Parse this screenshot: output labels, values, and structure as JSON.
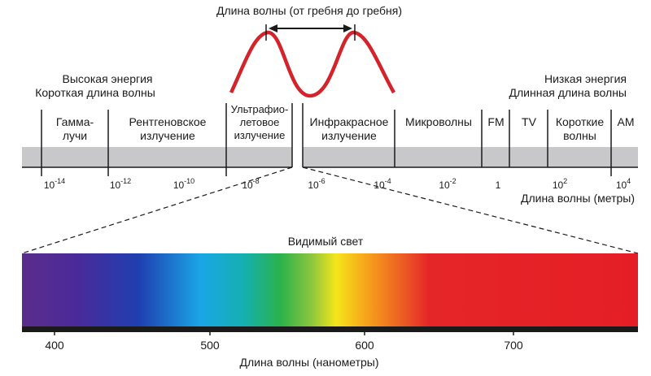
{
  "wave": {
    "caption": "Длина волны (от гребня до гребня)",
    "color": "#d4232a"
  },
  "left_caption": [
    "Высокая энергия",
    "Короткая длина волны"
  ],
  "right_caption": [
    "Низкая энергия",
    "Длинная длина волны"
  ],
  "bands": [
    {
      "lines": [
        "Гамма-",
        "лучи"
      ]
    },
    {
      "lines": [
        "Рентгеновское",
        "излучение"
      ]
    },
    {
      "lines": [
        "Ультрафио-",
        "летовое",
        "излучение"
      ]
    },
    {
      "lines": [
        "Инфракрасное",
        "излучение"
      ]
    },
    {
      "lines": [
        "Микроволны"
      ]
    },
    {
      "lines": [
        "FM"
      ]
    },
    {
      "lines": [
        "TV"
      ]
    },
    {
      "lines": [
        "Короткие",
        "волны"
      ]
    },
    {
      "lines": [
        "AM"
      ]
    }
  ],
  "wavelength_ticks": [
    {
      "base": "10",
      "exp": "-14"
    },
    {
      "base": "10",
      "exp": "-12"
    },
    {
      "base": "10",
      "exp": "-10"
    },
    {
      "base": "10",
      "exp": "-8"
    },
    {
      "base": "10",
      "exp": "-6"
    },
    {
      "base": "10",
      "exp": "-4"
    },
    {
      "base": "10",
      "exp": "-2"
    },
    {
      "base": "1",
      "exp": ""
    },
    {
      "base": "10",
      "exp": "2"
    },
    {
      "base": "10",
      "exp": "4"
    }
  ],
  "wavelength_axis_label": "Длина волны (метры)",
  "visible": {
    "title": "Видимый свет",
    "axis_label": "Длина волны (нанометры)",
    "ticks": [
      "400",
      "500",
      "600",
      "700"
    ]
  },
  "colors": {
    "band_bar": "#c8c8cb",
    "axis": "#1a1a1a"
  }
}
